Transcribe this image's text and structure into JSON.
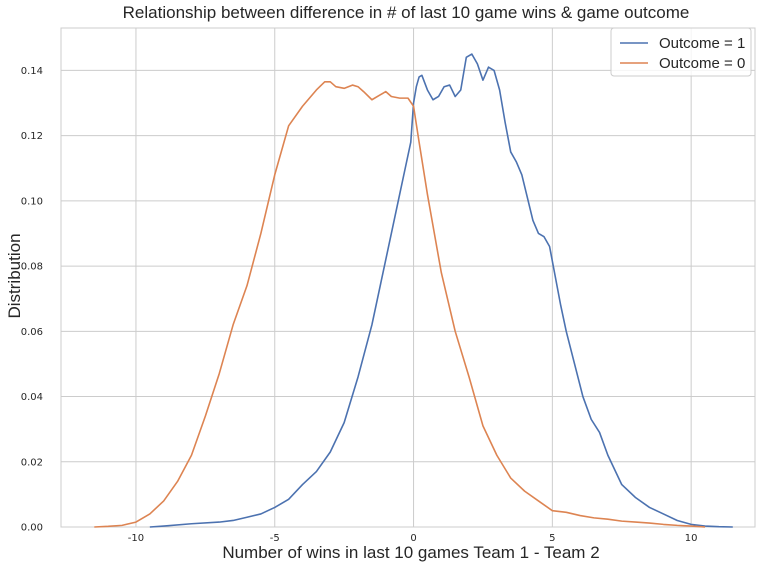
{
  "chart_data": {
    "type": "line",
    "title": "Relationship between difference in # of last 10 game wins & game outcome",
    "xlabel": "Number of wins in last 10 games Team 1 - Team 2",
    "ylabel": "Distribution",
    "xlim": [
      -12.7,
      12.3
    ],
    "ylim": [
      0,
      0.153
    ],
    "xticks": [
      -10,
      -5,
      0,
      5,
      10
    ],
    "xtick_labels": [
      "-10",
      "-5",
      "0",
      "5",
      "10"
    ],
    "yticks": [
      0,
      0.02,
      0.04,
      0.06,
      0.08,
      0.1,
      0.12,
      0.14
    ],
    "ytick_labels": [
      "0.00",
      "0.02",
      "0.04",
      "0.06",
      "0.08",
      "0.10",
      "0.12",
      "0.14"
    ],
    "grid": true,
    "legend_position": "top-right",
    "series": [
      {
        "name": "Outcome = 1",
        "color": "#4c72b0",
        "x": [
          -9.5,
          -9.0,
          -8.0,
          -7.0,
          -6.5,
          -6.0,
          -5.5,
          -5.0,
          -4.5,
          -4.0,
          -3.5,
          -3.0,
          -2.5,
          -2.0,
          -1.5,
          -1.0,
          -0.5,
          -0.3,
          -0.1,
          0.0,
          0.1,
          0.2,
          0.3,
          0.5,
          0.7,
          0.9,
          1.1,
          1.3,
          1.5,
          1.7,
          1.9,
          2.1,
          2.3,
          2.5,
          2.7,
          2.9,
          3.1,
          3.3,
          3.5,
          3.7,
          3.9,
          4.1,
          4.3,
          4.5,
          4.7,
          4.9,
          5.1,
          5.3,
          5.5,
          5.8,
          6.1,
          6.4,
          6.7,
          7.0,
          7.5,
          8.0,
          8.5,
          9.0,
          9.5,
          10.0,
          10.5,
          11.0,
          11.5
        ],
        "y": [
          0.0,
          0.0003,
          0.001,
          0.0015,
          0.002,
          0.003,
          0.004,
          0.006,
          0.0085,
          0.013,
          0.017,
          0.023,
          0.032,
          0.046,
          0.062,
          0.082,
          0.102,
          0.11,
          0.118,
          0.13,
          0.135,
          0.138,
          0.1385,
          0.134,
          0.131,
          0.132,
          0.135,
          0.1355,
          0.132,
          0.134,
          0.144,
          0.145,
          0.142,
          0.137,
          0.141,
          0.14,
          0.134,
          0.124,
          0.115,
          0.112,
          0.108,
          0.101,
          0.094,
          0.09,
          0.089,
          0.086,
          0.077,
          0.068,
          0.06,
          0.05,
          0.04,
          0.033,
          0.029,
          0.022,
          0.013,
          0.009,
          0.006,
          0.004,
          0.002,
          0.0008,
          0.0003,
          0.0001,
          0.0
        ]
      },
      {
        "name": "Outcome = 0",
        "color": "#dd8452",
        "x": [
          -11.5,
          -11.0,
          -10.5,
          -10.0,
          -9.5,
          -9.0,
          -8.5,
          -8.0,
          -7.5,
          -7.0,
          -6.5,
          -6.0,
          -5.5,
          -5.0,
          -4.5,
          -4.0,
          -3.5,
          -3.2,
          -3.0,
          -2.8,
          -2.5,
          -2.2,
          -2.0,
          -1.8,
          -1.5,
          -1.2,
          -1.0,
          -0.8,
          -0.5,
          -0.2,
          0.0,
          0.2,
          0.5,
          1.0,
          1.5,
          2.0,
          2.5,
          3.0,
          3.5,
          4.0,
          4.5,
          5.0,
          5.5,
          6.0,
          6.5,
          7.0,
          7.5,
          8.0,
          8.5,
          9.0,
          9.5,
          10.0,
          10.5
        ],
        "y": [
          0.0,
          0.0002,
          0.0005,
          0.0015,
          0.004,
          0.008,
          0.014,
          0.022,
          0.034,
          0.047,
          0.062,
          0.074,
          0.09,
          0.108,
          0.123,
          0.129,
          0.134,
          0.1365,
          0.1365,
          0.135,
          0.1345,
          0.1355,
          0.135,
          0.1335,
          0.131,
          0.1325,
          0.1335,
          0.132,
          0.1315,
          0.1315,
          0.129,
          0.118,
          0.102,
          0.078,
          0.06,
          0.046,
          0.031,
          0.022,
          0.015,
          0.011,
          0.008,
          0.005,
          0.0045,
          0.0035,
          0.0028,
          0.0024,
          0.0018,
          0.0015,
          0.0012,
          0.0008,
          0.0005,
          0.0003,
          0.0
        ]
      }
    ]
  }
}
